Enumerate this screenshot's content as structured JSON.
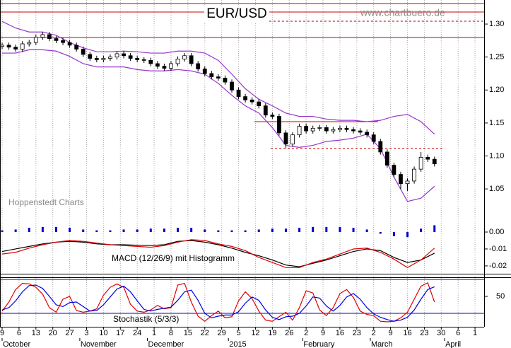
{
  "chart_data": [
    {
      "type": "candlestick",
      "title": "EUR/USD",
      "source": "www.chartbuero.de",
      "watermark": "Hoppenstedt Charts",
      "x": [
        0,
        2,
        4,
        6,
        8,
        10,
        12,
        14,
        16,
        18,
        20,
        22,
        24,
        26,
        28,
        30,
        32,
        34,
        36,
        38,
        40,
        42,
        44,
        46,
        48,
        50,
        52,
        54,
        56,
        58,
        60,
        62,
        64,
        66,
        68,
        70,
        72,
        74,
        76,
        78,
        80,
        82,
        84,
        86,
        88,
        90,
        92,
        94,
        96,
        98,
        100,
        102,
        104,
        106,
        108,
        110,
        112,
        114,
        116,
        118,
        120,
        122,
        124,
        126,
        128
      ],
      "open": [
        1.266,
        1.268,
        1.265,
        1.262,
        1.27,
        1.272,
        1.28,
        1.284,
        1.278,
        1.275,
        1.272,
        1.268,
        1.262,
        1.254,
        1.248,
        1.246,
        1.248,
        1.25,
        1.255,
        1.252,
        1.248,
        1.246,
        1.245,
        1.24,
        1.236,
        1.233,
        1.24,
        1.247,
        1.252,
        1.24,
        1.232,
        1.225,
        1.22,
        1.218,
        1.212,
        1.2,
        1.19,
        1.185,
        1.182,
        1.176,
        1.162,
        1.16,
        1.135,
        1.118,
        1.132,
        1.145,
        1.138,
        1.142,
        1.143,
        1.138,
        1.14,
        1.142,
        1.14,
        1.138,
        1.136,
        1.132,
        1.122,
        1.106,
        1.086,
        1.072,
        1.058,
        1.062,
        1.08,
        1.098,
        1.095
      ],
      "high": [
        1.272,
        1.272,
        1.269,
        1.274,
        1.276,
        1.284,
        1.288,
        1.288,
        1.282,
        1.279,
        1.276,
        1.272,
        1.266,
        1.258,
        1.252,
        1.252,
        1.254,
        1.259,
        1.259,
        1.256,
        1.252,
        1.25,
        1.249,
        1.244,
        1.24,
        1.244,
        1.251,
        1.256,
        1.256,
        1.244,
        1.236,
        1.229,
        1.224,
        1.222,
        1.216,
        1.204,
        1.194,
        1.189,
        1.186,
        1.18,
        1.166,
        1.164,
        1.139,
        1.136,
        1.149,
        1.149,
        1.146,
        1.147,
        1.147,
        1.144,
        1.146,
        1.146,
        1.144,
        1.142,
        1.14,
        1.136,
        1.126,
        1.11,
        1.09,
        1.076,
        1.066,
        1.084,
        1.106,
        1.102,
        1.099
      ],
      "low": [
        1.262,
        1.261,
        1.258,
        1.258,
        1.266,
        1.268,
        1.276,
        1.274,
        1.271,
        1.268,
        1.264,
        1.258,
        1.25,
        1.244,
        1.242,
        1.242,
        1.244,
        1.246,
        1.248,
        1.244,
        1.242,
        1.241,
        1.236,
        1.232,
        1.229,
        1.229,
        1.236,
        1.243,
        1.236,
        1.228,
        1.221,
        1.216,
        1.214,
        1.208,
        1.196,
        1.186,
        1.181,
        1.178,
        1.172,
        1.158,
        1.156,
        1.131,
        1.112,
        1.114,
        1.128,
        1.134,
        1.134,
        1.138,
        1.134,
        1.134,
        1.136,
        1.136,
        1.134,
        1.132,
        1.128,
        1.118,
        1.102,
        1.082,
        1.068,
        1.05,
        1.047,
        1.058,
        1.076,
        1.091,
        1.084
      ],
      "close": [
        1.268,
        1.265,
        1.262,
        1.27,
        1.272,
        1.28,
        1.284,
        1.278,
        1.275,
        1.272,
        1.268,
        1.262,
        1.254,
        1.248,
        1.246,
        1.248,
        1.25,
        1.255,
        1.252,
        1.248,
        1.246,
        1.245,
        1.24,
        1.236,
        1.233,
        1.24,
        1.247,
        1.252,
        1.24,
        1.232,
        1.225,
        1.22,
        1.218,
        1.212,
        1.2,
        1.19,
        1.185,
        1.182,
        1.176,
        1.162,
        1.16,
        1.135,
        1.118,
        1.132,
        1.145,
        1.138,
        1.142,
        1.143,
        1.138,
        1.14,
        1.142,
        1.14,
        1.138,
        1.136,
        1.132,
        1.122,
        1.106,
        1.086,
        1.072,
        1.058,
        1.062,
        1.08,
        1.098,
        1.095,
        1.088
      ],
      "bands": {
        "x": [
          0,
          4,
          8,
          12,
          16,
          20,
          24,
          28,
          32,
          36,
          40,
          44,
          48,
          52,
          56,
          60,
          64,
          68,
          72,
          76,
          80,
          84,
          88,
          92,
          96,
          100,
          104,
          108,
          112,
          116,
          120,
          124,
          128
        ],
        "series": [
          {
            "color": "#9933cc",
            "values": [
              1.304,
              1.294,
              1.288,
              1.288,
              1.283,
              1.272,
              1.264,
              1.258,
              1.258,
              1.259,
              1.258,
              1.256,
              1.256,
              1.259,
              1.259,
              1.256,
              1.245,
              1.224,
              1.202,
              1.186,
              1.176,
              1.165,
              1.16,
              1.16,
              1.156,
              1.154,
              1.154,
              1.152,
              1.154,
              1.16,
              1.163,
              1.152,
              1.133
            ]
          },
          {
            "color": "#9933cc",
            "values": [
              1.256,
              1.256,
              1.261,
              1.261,
              1.259,
              1.251,
              1.24,
              1.235,
              1.235,
              1.235,
              1.231,
              1.229,
              1.229,
              1.231,
              1.229,
              1.224,
              1.21,
              1.192,
              1.176,
              1.165,
              1.143,
              1.116,
              1.113,
              1.116,
              1.122,
              1.124,
              1.127,
              1.133,
              1.111,
              1.068,
              1.031,
              1.036,
              1.054
            ]
          }
        ]
      },
      "levels": [
        {
          "value": 1.3311,
          "color": "#cc0000"
        },
        {
          "value": 1.3183,
          "color": "#cc0000"
        },
        {
          "value": 1.3043,
          "color": "#990000",
          "dashed": true,
          "from": 64
        },
        {
          "value": 1.2796,
          "color": "#cc0000"
        },
        {
          "value": 1.152,
          "color": "#cc0000",
          "from": 74.7,
          "to": 111.3
        },
        {
          "value": 1.1115,
          "color": "#cc0000",
          "dashed": true,
          "from": 79.5,
          "to": 131
        }
      ],
      "ylim": [
        1.004,
        1.3365
      ],
      "yticks": [
        1.05,
        {
          "value": 1.1,
          "label": "1.10"
        },
        1.15,
        {
          "value": 1.2,
          "label": "1.20"
        },
        1.25,
        {
          "value": 1.3,
          "label": "1.30"
        }
      ]
    },
    {
      "type": "macd",
      "title": "MACD (12/26/9) mit Histogramm",
      "x": [
        0,
        4,
        8,
        12,
        16,
        20,
        24,
        28,
        32,
        36,
        40,
        44,
        48,
        52,
        56,
        60,
        64,
        68,
        72,
        76,
        80,
        84,
        88,
        92,
        96,
        100,
        104,
        108,
        112,
        116,
        120,
        124,
        128
      ],
      "series": [
        {
          "color": "#000000",
          "values": [
            -0.0115,
            -0.01,
            -0.0085,
            -0.007,
            -0.006,
            -0.0055,
            -0.006,
            -0.007,
            -0.0075,
            -0.0075,
            -0.0078,
            -0.008,
            -0.0075,
            -0.0055,
            -0.005,
            -0.006,
            -0.0075,
            -0.0095,
            -0.012,
            -0.014,
            -0.0165,
            -0.0195,
            -0.0205,
            -0.0185,
            -0.0165,
            -0.014,
            -0.0115,
            -0.01,
            -0.011,
            -0.015,
            -0.018,
            -0.0165,
            -0.0125
          ]
        },
        {
          "color": "#e00000",
          "values": [
            -0.013,
            -0.012,
            -0.0095,
            -0.0075,
            -0.006,
            -0.005,
            -0.0055,
            -0.0065,
            -0.0075,
            -0.008,
            -0.0085,
            -0.009,
            -0.008,
            -0.006,
            -0.0045,
            -0.005,
            -0.007,
            -0.0085,
            -0.011,
            -0.015,
            -0.018,
            -0.021,
            -0.021,
            -0.018,
            -0.016,
            -0.013,
            -0.01,
            -0.0095,
            -0.012,
            -0.016,
            -0.021,
            -0.0165,
            -0.0095
          ]
        }
      ],
      "histogram": {
        "color": "#0000cc",
        "values": [
          0.001,
          0.0015,
          0.0025,
          0.003,
          0.003,
          0.0025,
          0.0015,
          0.001,
          0.001,
          0.0015,
          0.0015,
          0.002,
          0.002,
          0.0025,
          0.0025,
          0.0015,
          0.001,
          0.001,
          0.001,
          0.0015,
          0.002,
          0.002,
          0.0025,
          0.003,
          0.003,
          0.003,
          0.0025,
          0.0015,
          -0.001,
          -0.0025,
          -0.003,
          0.002,
          0.004
        ]
      },
      "ylim": [
        -0.0238,
        0.0067
      ],
      "yticks": [
        {
          "value": 0,
          "label": "0.00"
        },
        {
          "value": -0.01,
          "label": "-0.01"
        },
        {
          "value": -0.02,
          "label": "-0.02"
        }
      ]
    },
    {
      "type": "stochastic",
      "title": "Stochastik (5/3/3)",
      "x": [
        0,
        2,
        4,
        6,
        8,
        10,
        12,
        14,
        16,
        18,
        20,
        22,
        24,
        26,
        28,
        30,
        32,
        34,
        36,
        38,
        40,
        42,
        44,
        46,
        48,
        50,
        52,
        54,
        56,
        58,
        60,
        62,
        64,
        66,
        68,
        70,
        72,
        74,
        76,
        78,
        80,
        82,
        84,
        86,
        88,
        90,
        92,
        94,
        96,
        98,
        100,
        102,
        104,
        106,
        108,
        110,
        112,
        114,
        116,
        118,
        120,
        122,
        124,
        126,
        128
      ],
      "series": [
        {
          "color": "#e00000",
          "values": [
            24,
            40,
            62,
            73,
            72,
            66,
            54,
            30,
            22,
            45,
            50,
            25,
            22,
            24,
            28,
            52,
            66,
            72,
            66,
            36,
            24,
            22,
            26,
            34,
            28,
            30,
            70,
            73,
            40,
            15,
            6,
            16,
            24,
            12,
            14,
            42,
            58,
            46,
            24,
            8,
            6,
            14,
            22,
            8,
            30,
            60,
            56,
            26,
            16,
            30,
            55,
            62,
            48,
            24,
            18,
            16,
            6,
            5,
            6,
            12,
            22,
            45,
            68,
            74,
            40
          ]
        },
        {
          "color": "#0000dd",
          "values": [
            26,
            30,
            42,
            58,
            69,
            70,
            64,
            50,
            35,
            32,
            39,
            40,
            32,
            24,
            25,
            35,
            49,
            63,
            68,
            58,
            42,
            27,
            24,
            27,
            29,
            31,
            43,
            58,
            61,
            43,
            20,
            12,
            15,
            17,
            17,
            23,
            38,
            49,
            43,
            26,
            13,
            9,
            14,
            15,
            20,
            33,
            49,
            47,
            33,
            24,
            34,
            49,
            55,
            45,
            30,
            19,
            13,
            9,
            6,
            8,
            13,
            26,
            45,
            62,
            67
          ]
        }
      ],
      "levels": [
        {
          "value": 20,
          "color": "#0000cc"
        },
        {
          "value": 80,
          "color": "#0000cc"
        }
      ],
      "ylim": [
        -3.75,
        82.5
      ],
      "yticks": [
        50
      ],
      "xlim": [
        -0.63,
        142.7
      ],
      "xticks": [
        {
          "value": 0,
          "label": "9"
        },
        {
          "value": 5,
          "label": "6"
        },
        {
          "value": 10,
          "label": "13"
        },
        {
          "value": 15,
          "label": "20"
        },
        {
          "value": 20,
          "label": "27"
        },
        {
          "value": 25,
          "label": "3"
        },
        {
          "value": 30,
          "label": "10"
        },
        {
          "value": 35,
          "label": "17"
        },
        {
          "value": 40,
          "label": "24"
        },
        {
          "value": 45,
          "label": "1"
        },
        {
          "value": 50,
          "label": "8"
        },
        {
          "value": 55,
          "label": "15"
        },
        {
          "value": 60,
          "label": "22"
        },
        {
          "value": 65,
          "label": "29"
        },
        {
          "value": 70,
          "label": "5"
        },
        {
          "value": 75,
          "label": "12"
        },
        {
          "value": 80,
          "label": "19"
        },
        {
          "value": 85,
          "label": "26"
        },
        {
          "value": 90,
          "label": "2"
        },
        {
          "value": 95,
          "label": "9"
        },
        {
          "value": 100,
          "label": "16"
        },
        {
          "value": 105,
          "label": "23"
        },
        {
          "value": 110,
          "label": "2"
        },
        {
          "value": 115,
          "label": "9"
        },
        {
          "value": 120,
          "label": "16"
        },
        {
          "value": 125,
          "label": "23"
        },
        {
          "value": 130,
          "label": "30"
        },
        {
          "value": 135,
          "label": "6"
        },
        {
          "value": 140,
          "label": "1"
        }
      ],
      "month_ticks": [
        {
          "value": 0,
          "label": "October"
        },
        {
          "value": 23,
          "label": "November"
        },
        {
          "value": 43,
          "label": "December"
        },
        {
          "value": 67,
          "label": "2015"
        },
        {
          "value": 89,
          "label": "February"
        },
        {
          "value": 109,
          "label": "March"
        },
        {
          "value": 131,
          "label": "April"
        }
      ],
      "grid": true
    }
  ]
}
